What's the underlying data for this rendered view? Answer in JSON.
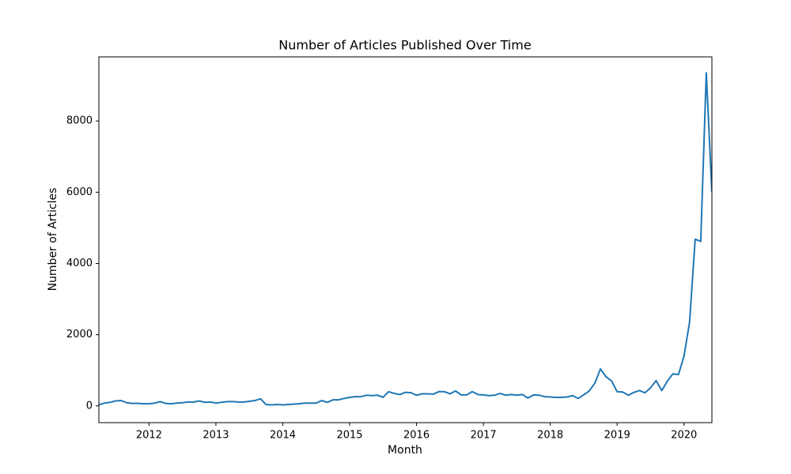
{
  "chart_data": {
    "type": "line",
    "title": "Number of Articles Published Over Time",
    "x_label": "Month",
    "y_label": "Number of Articles",
    "x": [
      2011.25,
      2011.333,
      2011.417,
      2011.5,
      2011.583,
      2011.667,
      2011.75,
      2011.833,
      2011.917,
      2012,
      2012.083,
      2012.167,
      2012.25,
      2012.333,
      2012.417,
      2012.5,
      2012.583,
      2012.667,
      2012.75,
      2012.833,
      2012.917,
      2013,
      2013.083,
      2013.167,
      2013.25,
      2013.333,
      2013.417,
      2013.5,
      2013.583,
      2013.667,
      2013.75,
      2013.833,
      2013.917,
      2014,
      2014.083,
      2014.167,
      2014.25,
      2014.333,
      2014.417,
      2014.5,
      2014.583,
      2014.667,
      2014.75,
      2014.833,
      2014.917,
      2015,
      2015.083,
      2015.167,
      2015.25,
      2015.333,
      2015.417,
      2015.5,
      2015.583,
      2015.667,
      2015.75,
      2015.833,
      2015.917,
      2016,
      2016.083,
      2016.167,
      2016.25,
      2016.333,
      2016.417,
      2016.5,
      2016.583,
      2016.667,
      2016.75,
      2016.833,
      2016.917,
      2017,
      2017.083,
      2017.167,
      2017.25,
      2017.333,
      2017.417,
      2017.5,
      2017.583,
      2017.667,
      2017.75,
      2017.833,
      2017.917,
      2018,
      2018.083,
      2018.167,
      2018.25,
      2018.333,
      2018.417,
      2018.5,
      2018.583,
      2018.667,
      2018.75,
      2018.833,
      2018.917,
      2019,
      2019.083,
      2019.167,
      2019.25,
      2019.333,
      2019.417,
      2019.5,
      2019.583,
      2019.667,
      2019.75,
      2019.833,
      2019.917,
      2020,
      2020.083,
      2020.167,
      2020.25,
      2020.333,
      2020.417
    ],
    "values": [
      30,
      80,
      100,
      140,
      150,
      90,
      70,
      70,
      60,
      60,
      80,
      120,
      70,
      60,
      80,
      90,
      110,
      110,
      140,
      100,
      110,
      80,
      100,
      120,
      120,
      110,
      110,
      130,
      150,
      200,
      40,
      30,
      40,
      30,
      40,
      50,
      60,
      80,
      80,
      80,
      150,
      100,
      170,
      170,
      210,
      240,
      260,
      260,
      300,
      290,
      300,
      240,
      400,
      350,
      320,
      380,
      370,
      300,
      340,
      340,
      330,
      400,
      400,
      340,
      420,
      310,
      310,
      400,
      320,
      310,
      290,
      300,
      350,
      300,
      320,
      300,
      320,
      220,
      310,
      300,
      260,
      250,
      240,
      240,
      250,
      290,
      210,
      310,
      420,
      640,
      1040,
      820,
      700,
      400,
      390,
      300,
      380,
      430,
      370,
      510,
      710,
      430,
      690,
      900,
      880,
      1400,
      2350,
      4680,
      4620,
      9350,
      6000
    ],
    "color": "#1f77b4",
    "xlim": [
      2011.25,
      2020.417
    ],
    "xticks": [
      2012,
      2013,
      2014,
      2015,
      2016,
      2017,
      2018,
      2019,
      2020
    ],
    "ylim": [
      -470,
      9800
    ],
    "yticks": [
      0,
      2000,
      4000,
      6000,
      8000
    ],
    "grid": false
  }
}
